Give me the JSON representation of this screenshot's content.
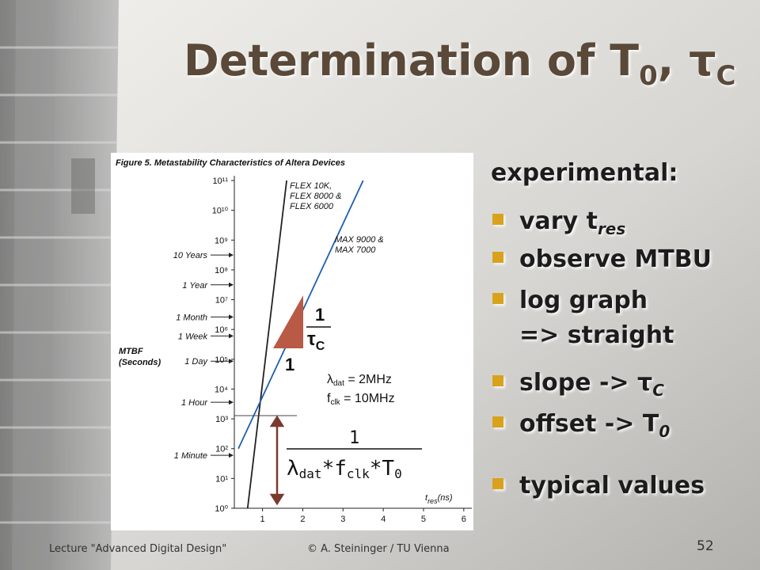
{
  "slide": {
    "title": [
      "Determination of T",
      "0",
      ", τ",
      "C"
    ],
    "heading": "experimental:",
    "bullets": [
      [
        "vary t",
        "res"
      ],
      [
        "observe MTBU"
      ],
      [
        "log graph",
        "=> straight"
      ],
      [
        "slope -> τ",
        "C"
      ],
      [
        "offset -> T",
        "0"
      ],
      [
        "typical values"
      ]
    ],
    "footer": {
      "left": "Lecture \"Advanced Digital Design\"",
      "center": "© A. Steininger / TU Vienna",
      "page": "52"
    }
  },
  "chart_data": {
    "type": "line",
    "title": "Figure 5. Metastability Characteristics of Altera Devices",
    "y_label": [
      "MTBF",
      "(Seconds)"
    ],
    "x_label": [
      "t",
      "res",
      "(ns)"
    ],
    "log_y": true,
    "xlim": [
      0.3,
      6.2
    ],
    "ylim": [
      1,
      100000000000
    ],
    "xticks": [
      1,
      2,
      3,
      4,
      5,
      6
    ],
    "yticks": [
      {
        "value": 1,
        "label": "10⁰"
      },
      {
        "value": 10,
        "label": "10¹"
      },
      {
        "value": 100,
        "label": "10²"
      },
      {
        "value": 1000,
        "label": "10³"
      },
      {
        "value": 10000,
        "label": "10⁴"
      },
      {
        "value": 100000,
        "label": "10⁵"
      },
      {
        "value": 1000000,
        "label": "10⁶"
      },
      {
        "value": 10000000,
        "label": "10⁷"
      },
      {
        "value": 100000000,
        "label": "10⁸"
      },
      {
        "value": 1000000000,
        "label": "10⁹"
      },
      {
        "value": 10000000000,
        "label": "10¹⁰"
      },
      {
        "value": 100000000000,
        "label": "10¹¹"
      }
    ],
    "time_ticks": [
      {
        "value": 315360000,
        "label": "10 Years"
      },
      {
        "value": 31536000,
        "label": "1 Year"
      },
      {
        "value": 2628000,
        "label": "1 Month"
      },
      {
        "value": 604800,
        "label": "1 Week"
      },
      {
        "value": 86400,
        "label": "1 Day"
      },
      {
        "value": 3600,
        "label": "1 Hour"
      },
      {
        "value": 60,
        "label": "1 Minute"
      }
    ],
    "series": [
      {
        "name": [
          "FLEX 10K,",
          "FLEX 8000 &",
          "FLEX 6000"
        ],
        "color": "#222222",
        "x": [
          0.63,
          1.6
        ],
        "values": [
          1,
          100000000000
        ]
      },
      {
        "name": [
          "MAX 9000 &",
          "MAX 7000"
        ],
        "color": "#1f5fae",
        "x": [
          0.4,
          3.5
        ],
        "values": [
          100,
          100000000000
        ]
      }
    ],
    "annotations": {
      "slope_num": "1",
      "slope_den": [
        "τ",
        "C"
      ],
      "slope_base": "1",
      "lambda": [
        "λ",
        "dat",
        " = 2MHz"
      ],
      "fclk": [
        "f",
        "clk",
        " = 10MHz"
      ],
      "formula_num": "1",
      "formula_den": [
        "λ",
        "dat",
        "*f",
        "clk",
        "*T",
        "0"
      ]
    }
  }
}
